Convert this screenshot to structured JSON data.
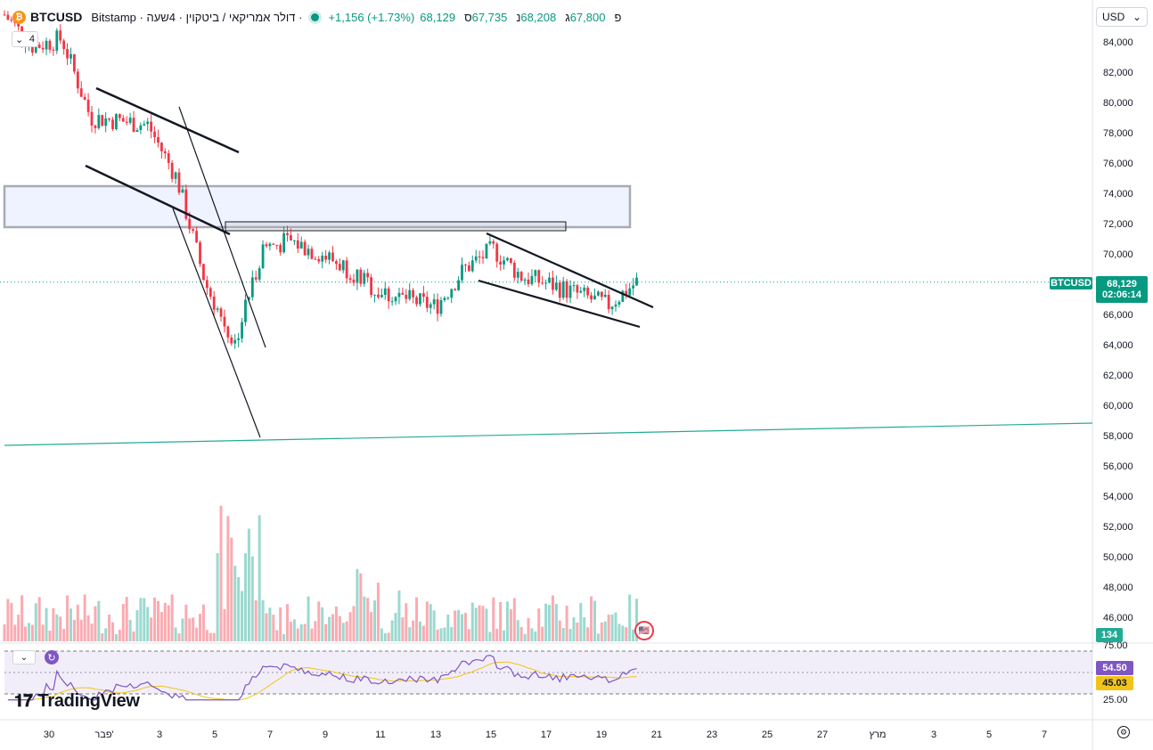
{
  "header": {
    "coin_icon": "bitcoin-icon",
    "coin_glyph": "₿",
    "symbol": "BTCUSD",
    "description": "· דולר אמריקאי / ביטקוין · 4שעה · Bitstamp",
    "change": "+1,156 (+1.73%)",
    "ohlc": [
      {
        "label": "ס",
        "value": "68,129"
      },
      {
        "label": "נ",
        "value": "67,735"
      },
      {
        "label": "ג",
        "value": "68,208"
      },
      {
        "label": "פ",
        "value": "67,800"
      }
    ]
  },
  "interval_button": {
    "label": "4",
    "icon": "chevron-down-icon"
  },
  "currency_button": {
    "label": "USD",
    "icon": "chevron-down-icon"
  },
  "price_axis": {
    "ticks": [
      "84,000",
      "82,000",
      "80,000",
      "78,000",
      "76,000",
      "74,000",
      "72,000",
      "70,000",
      "68,000",
      "66,000",
      "64,000",
      "62,000",
      "60,000",
      "58,000",
      "56,000",
      "54,000",
      "52,000",
      "50,000",
      "48,000",
      "46,000"
    ]
  },
  "last_price": {
    "symbol_tag": "BTCUSD",
    "price": "68,129",
    "countdown": "02:06:14"
  },
  "volume_badge": "134",
  "rsi_panel": {
    "ticks": [
      "75.00",
      "25.00"
    ],
    "rsi_value": "54.50",
    "ma_value": "45.03",
    "collapse_icon": "chevron-down-icon",
    "refresh_icon": "refresh-icon"
  },
  "time_axis": {
    "labels": [
      "30",
      "פבר'",
      "3",
      "5",
      "7",
      "9",
      "11",
      "13",
      "15",
      "17",
      "19",
      "21",
      "23",
      "25",
      "27",
      "מרץ",
      "3",
      "5",
      "7"
    ]
  },
  "logo": {
    "text": "TradingView"
  },
  "colors": {
    "up": "#089981",
    "down": "#f23645",
    "rsi": "#7e57c2",
    "rsi_ma": "#f0c419"
  },
  "chart_data": {
    "type": "candlestick",
    "symbol": "BTCUSD",
    "timeframe": "4h",
    "y_range": [
      45000,
      85000
    ],
    "price_scale_ticks": [
      84000,
      82000,
      80000,
      78000,
      76000,
      74000,
      72000,
      70000,
      68000,
      66000,
      64000,
      62000,
      60000,
      58000,
      56000,
      54000,
      52000,
      50000,
      48000,
      46000
    ],
    "last_price": 68129,
    "anchors": [
      {
        "date": "Jan 29",
        "close": 85800
      },
      {
        "date": "Jan 30",
        "close": 83700
      },
      {
        "date": "Jan 31",
        "close": 84200
      },
      {
        "date": "Feb 1",
        "close": 79000
      },
      {
        "date": "Feb 2",
        "close": 78800
      },
      {
        "date": "Feb 3",
        "close": 78500
      },
      {
        "date": "Feb 4",
        "close": 75000
      },
      {
        "date": "Feb 5",
        "close": 68000
      },
      {
        "date": "Feb 6",
        "close": 64000
      },
      {
        "date": "Feb 7",
        "close": 70500
      },
      {
        "date": "Feb 8",
        "close": 70800
      },
      {
        "date": "Feb 9",
        "close": 70000
      },
      {
        "date": "Feb 10",
        "close": 69000
      },
      {
        "date": "Feb 11",
        "close": 67500
      },
      {
        "date": "Feb 12",
        "close": 67000
      },
      {
        "date": "Feb 13",
        "close": 66500
      },
      {
        "date": "Feb 14",
        "close": 69000
      },
      {
        "date": "Feb 15",
        "close": 70300
      },
      {
        "date": "Feb 16",
        "close": 68500
      },
      {
        "date": "Feb 17",
        "close": 68000
      },
      {
        "date": "Feb 18",
        "close": 67300
      },
      {
        "date": "Feb 19",
        "close": 66600
      },
      {
        "date": "Feb 20",
        "close": 68129
      }
    ],
    "rsi": {
      "period": 14,
      "upper": 75,
      "lower": 25,
      "value": 54.5,
      "ma": 45.03
    }
  }
}
